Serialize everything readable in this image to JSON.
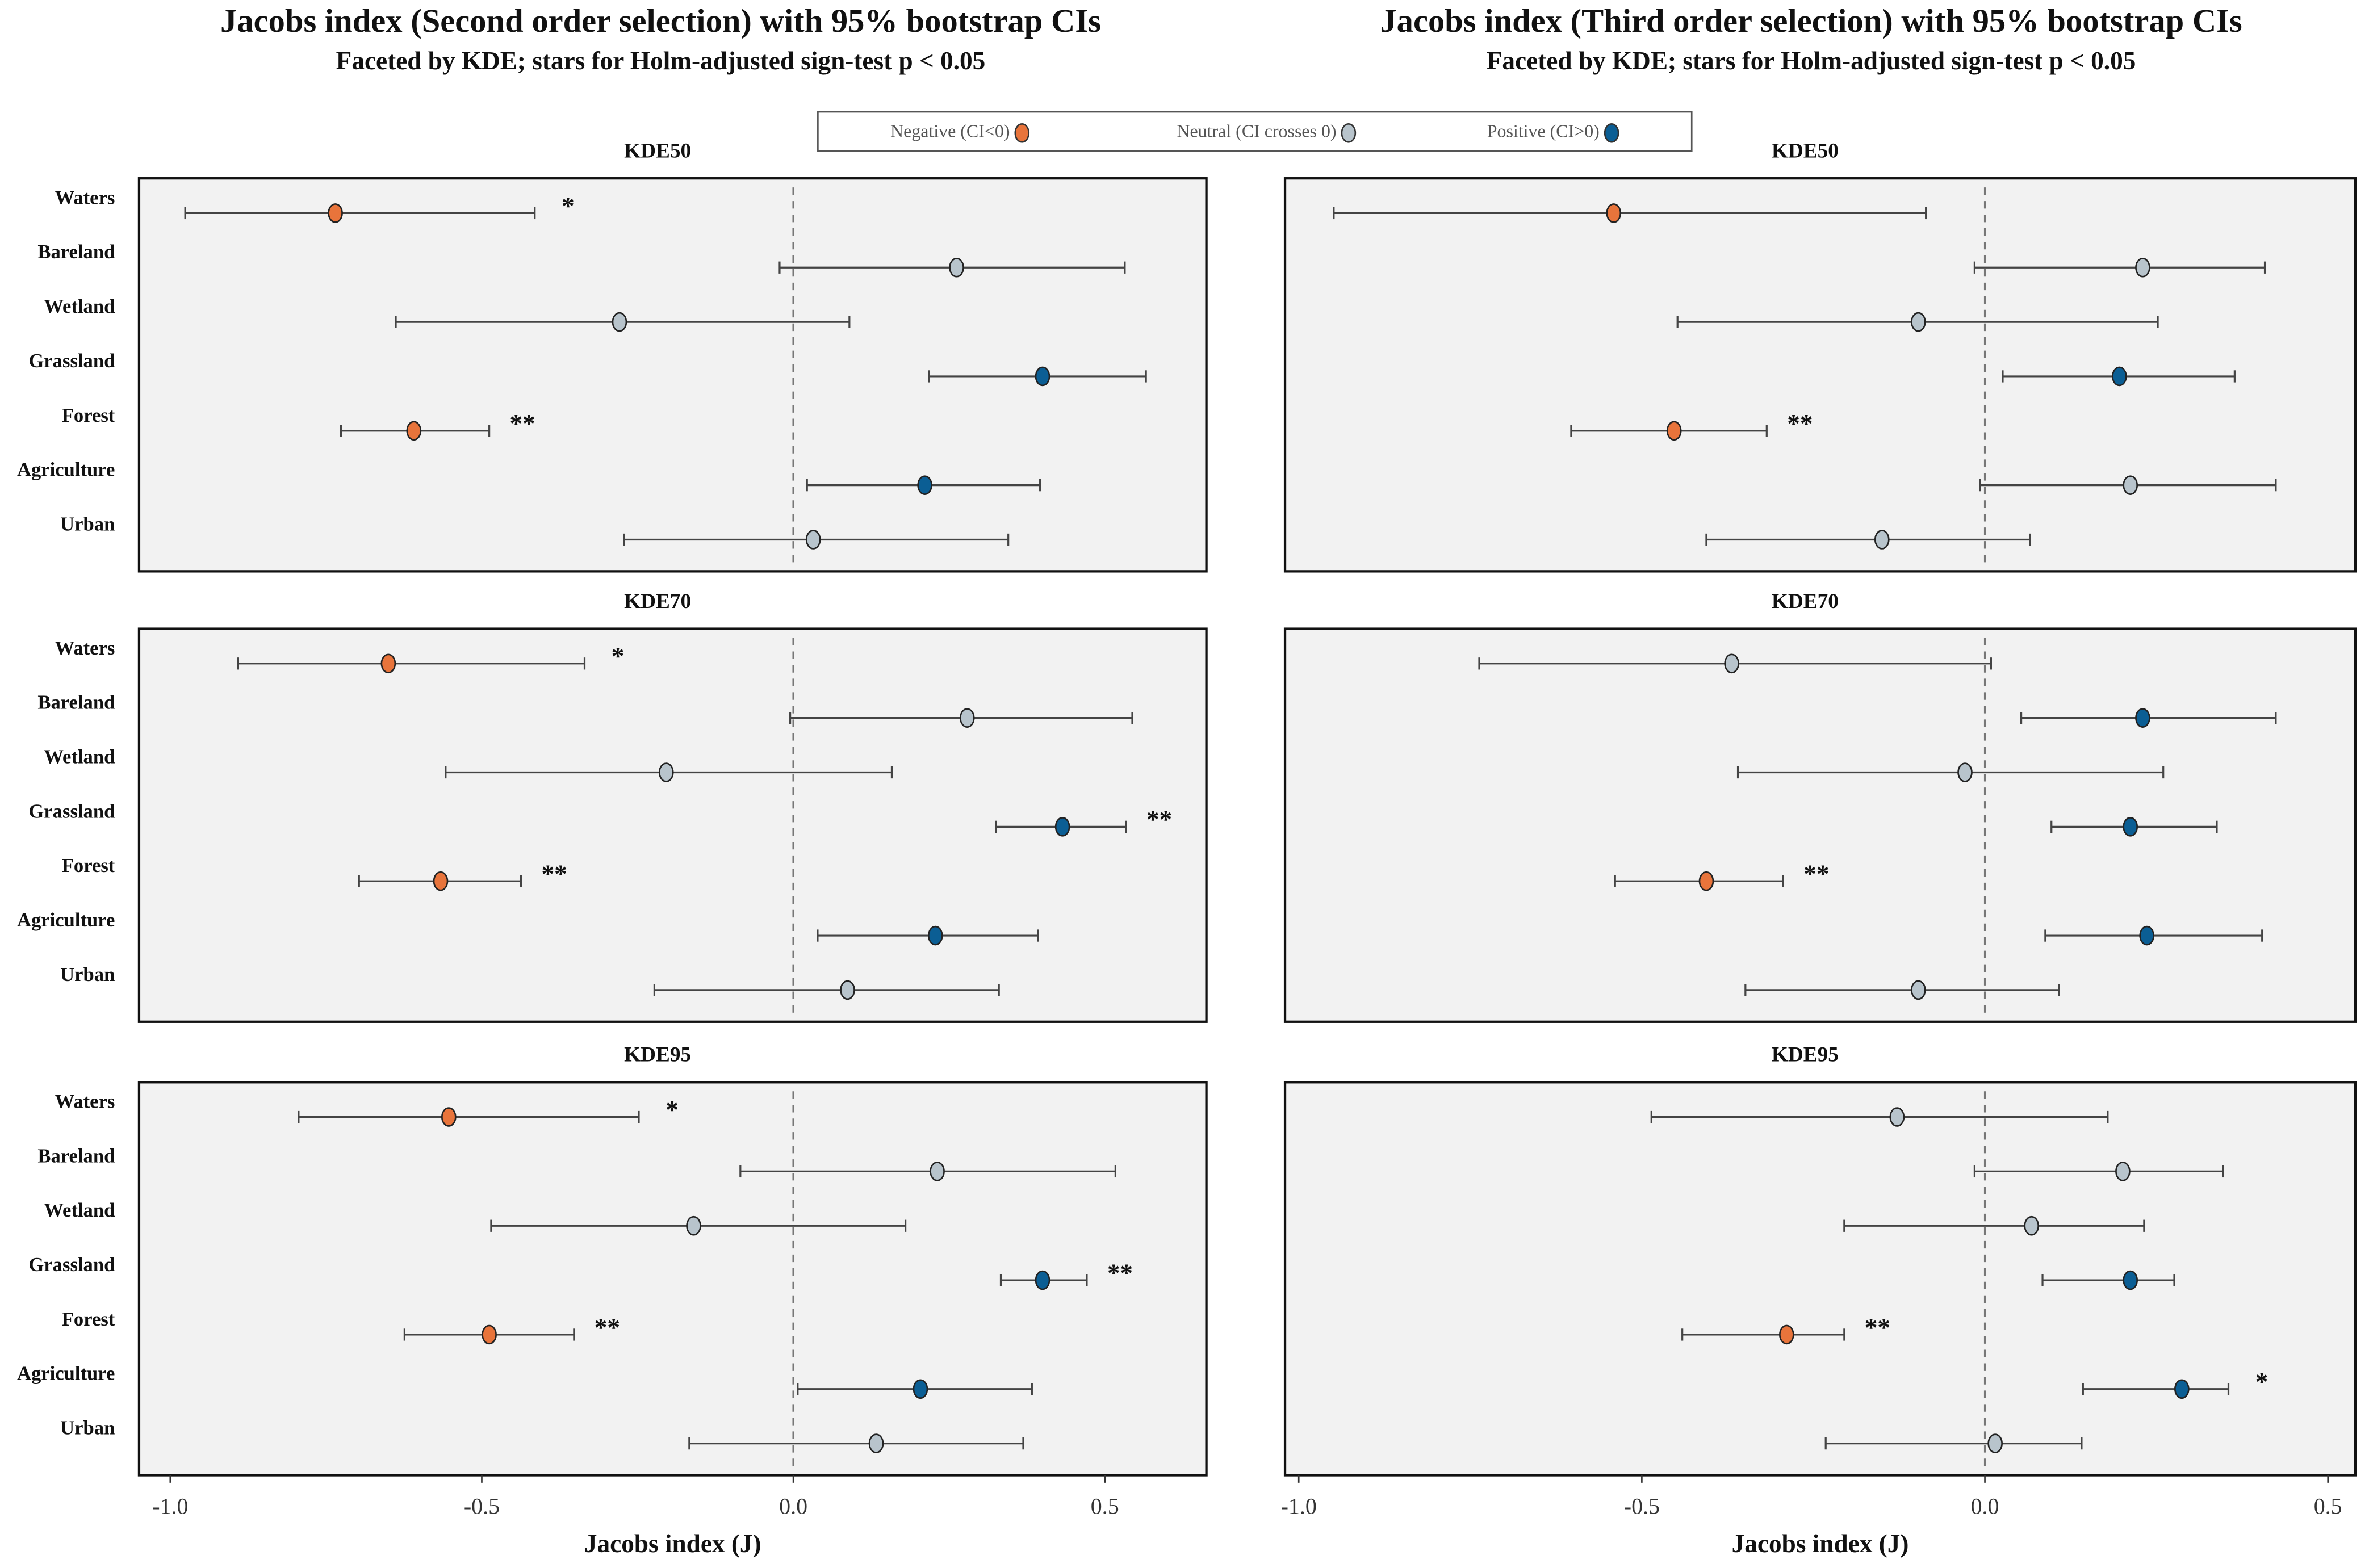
{
  "chart_data": [
    {
      "type": "errorbar",
      "title": "Jacobs index (Second order selection) with 95% bootstrap CIs",
      "subtitle": "Faceted by KDE; stars for Holm-adjusted sign-test p < 0.05",
      "x_label": "Jacobs index (J)",
      "xlim": [
        -1.05,
        0.663
      ],
      "xticks": [
        {
          "value": -1.0,
          "label": "-1.0"
        },
        {
          "value": -0.5,
          "label": "-0.5"
        },
        {
          "value": 0,
          "label": "0.0"
        },
        {
          "value": 0.5,
          "label": "0.5"
        }
      ],
      "reference_line": 0,
      "categories": [
        "Waters",
        "Bareland",
        "Wetland",
        "Grassland",
        "Forest",
        "Agriculture",
        "Urban"
      ],
      "legend": [
        {
          "name": "Negative (CI<0)",
          "color": "#e8743b"
        },
        {
          "name": "Neutral (CI crosses 0)",
          "color": "#b8c4cc"
        },
        {
          "name": "Positive (CI>0)",
          "color": "#0b5e94"
        }
      ],
      "facets": [
        {
          "title": "KDE50",
          "values": [
            -0.735,
            0.262,
            -0.279,
            0.4,
            -0.609,
            0.211,
            0.032
          ],
          "lower": [
            -0.976,
            -0.022,
            -0.638,
            0.218,
            -0.726,
            0.022,
            -0.272
          ],
          "upper": [
            -0.415,
            0.532,
            0.09,
            0.566,
            -0.488,
            0.396,
            0.345
          ],
          "stars": [
            "*",
            null,
            null,
            null,
            "**",
            null,
            null
          ]
        },
        {
          "title": "KDE70",
          "values": [
            -0.65,
            0.279,
            -0.204,
            0.432,
            -0.566,
            0.228,
            0.087
          ],
          "lower": [
            -0.891,
            -0.005,
            -0.558,
            0.325,
            -0.697,
            0.039,
            -0.223
          ],
          "upper": [
            -0.335,
            0.544,
            0.158,
            0.534,
            -0.437,
            0.393,
            0.33
          ],
          "stars": [
            "*",
            null,
            null,
            "**",
            "**",
            null,
            null
          ]
        },
        {
          "title": "KDE95",
          "values": [
            -0.553,
            0.231,
            -0.16,
            0.4,
            -0.488,
            0.204,
            0.133
          ],
          "lower": [
            -0.794,
            -0.085,
            -0.485,
            0.333,
            -0.624,
            0.007,
            -0.167
          ],
          "upper": [
            -0.248,
            0.517,
            0.18,
            0.471,
            -0.352,
            0.383,
            0.369
          ],
          "stars": [
            "*",
            null,
            null,
            "**",
            "**",
            null,
            null
          ]
        }
      ]
    },
    {
      "type": "errorbar",
      "title": "Jacobs index (Third order selection) with 95% bootstrap CIs",
      "subtitle": "Faceted by KDE; stars for Holm-adjusted sign-test p < 0.05",
      "x_label": "Jacobs index (J)",
      "xlim": [
        -1.02,
        0.54
      ],
      "xticks": [
        {
          "value": -1.0,
          "label": "-1.0"
        },
        {
          "value": -0.5,
          "label": "-0.5"
        },
        {
          "value": 0,
          "label": "0.0"
        },
        {
          "value": 0.5,
          "label": "0.5"
        }
      ],
      "reference_line": 0,
      "facets": [
        {
          "title": "KDE50",
          "values": [
            -0.541,
            0.23,
            -0.097,
            0.196,
            -0.453,
            0.212,
            -0.15
          ],
          "lower": [
            -0.949,
            -0.015,
            -0.448,
            0.026,
            -0.603,
            -0.007,
            -0.406
          ],
          "upper": [
            -0.086,
            0.408,
            0.252,
            0.364,
            -0.318,
            0.424,
            0.066
          ],
          "stars": [
            null,
            null,
            null,
            null,
            "**",
            null,
            null
          ]
        },
        {
          "title": "KDE70",
          "values": [
            -0.369,
            0.23,
            -0.029,
            0.212,
            -0.406,
            0.236,
            -0.097
          ],
          "lower": [
            -0.737,
            0.053,
            -0.36,
            0.097,
            -0.539,
            0.088,
            -0.349
          ],
          "upper": [
            0.009,
            0.424,
            0.26,
            0.338,
            -0.294,
            0.404,
            0.108
          ],
          "stars": [
            null,
            null,
            null,
            null,
            "**",
            null,
            null
          ]
        },
        {
          "title": "KDE95",
          "values": [
            -0.128,
            0.201,
            0.068,
            0.212,
            -0.289,
            0.287,
            0.015
          ],
          "lower": [
            -0.486,
            -0.015,
            -0.205,
            0.084,
            -0.441,
            0.143,
            -0.232
          ],
          "upper": [
            0.179,
            0.347,
            0.232,
            0.276,
            -0.205,
            0.355,
            0.141
          ],
          "stars": [
            null,
            null,
            null,
            null,
            "**",
            "*",
            null
          ]
        }
      ]
    }
  ]
}
